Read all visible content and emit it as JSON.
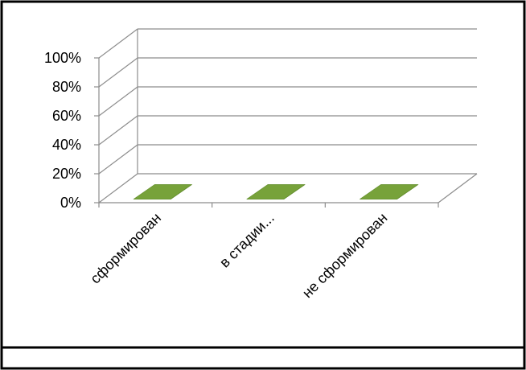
{
  "chart_data": {
    "type": "bar",
    "style": "3d-column",
    "title": "",
    "xlabel": "",
    "ylabel": "",
    "categories": [
      "сформирован",
      "в стадии...",
      "не сформирован"
    ],
    "values": [
      0,
      0,
      0
    ],
    "ylim": [
      0,
      100
    ],
    "yticks": [
      "0%",
      "20%",
      "40%",
      "60%",
      "80%",
      "100%"
    ],
    "grid": true,
    "legend": "none",
    "bar_color": "#77a23a",
    "grid_color": "#8c8c8c"
  }
}
